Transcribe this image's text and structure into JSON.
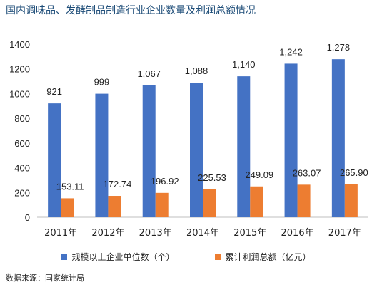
{
  "title": "国内调味品、发酵制品制造行业企业数量及利润总额情况",
  "source": "数据来源：国家统计局",
  "chart_data": {
    "type": "bar",
    "categories": [
      "2011年",
      "2012年",
      "2013年",
      "2014年",
      "2015年",
      "2016年",
      "2017年"
    ],
    "series": [
      {
        "name": "规模以上企业单位数（个）",
        "color": "#4472c4",
        "values": [
          921,
          999,
          1067,
          1088,
          1140,
          1242,
          1278
        ],
        "labels": [
          "921",
          "999",
          "1,067",
          "1,088",
          "1,140",
          "1,242",
          "1,278"
        ]
      },
      {
        "name": "累计利润总额（亿元）",
        "color": "#ed7d31",
        "values": [
          153.11,
          172.74,
          196.92,
          225.53,
          249.09,
          263.07,
          265.9
        ],
        "labels": [
          "153.11",
          "172.74",
          "196.92",
          "225.53",
          "249.09",
          "263.07",
          "265.90"
        ]
      }
    ],
    "ylim": [
      0,
      1400
    ],
    "yticks": [
      0,
      200,
      400,
      600,
      800,
      1000,
      1200,
      1400
    ],
    "legend_position": "bottom",
    "grid": false
  }
}
